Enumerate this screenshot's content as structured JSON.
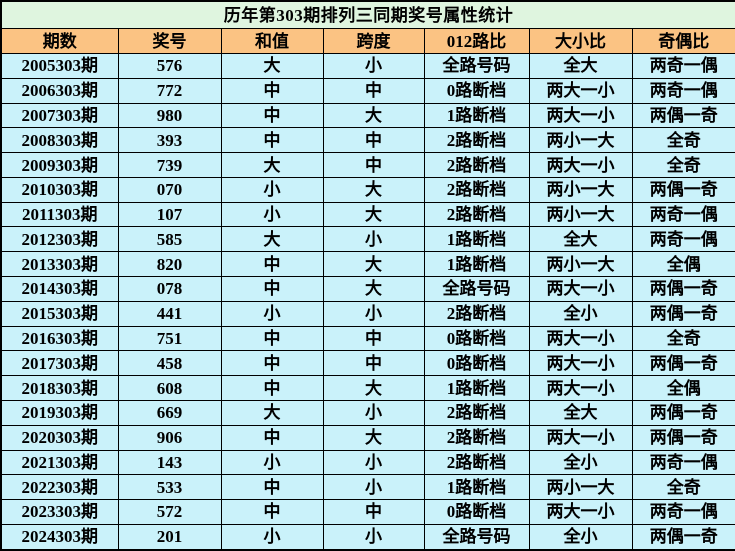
{
  "page_title": "历年第303期排列三同期奖号属性统计",
  "colors": {
    "title_bg": "#dff5df",
    "header_bg": "#fbc383",
    "row_bg": "#caf2fa",
    "border": "#000000",
    "text": "#000000"
  },
  "chart_data": {
    "type": "table",
    "title": "历年第303期排列三同期奖号属性统计",
    "columns": [
      "期数",
      "奖号",
      "和值",
      "跨度",
      "012路比",
      "大小比",
      "奇偶比"
    ],
    "rows": [
      [
        "2005303期",
        "576",
        "大",
        "小",
        "全路号码",
        "全大",
        "两奇一偶"
      ],
      [
        "2006303期",
        "772",
        "中",
        "中",
        "0路断档",
        "两大一小",
        "两奇一偶"
      ],
      [
        "2007303期",
        "980",
        "中",
        "大",
        "1路断档",
        "两大一小",
        "两偶一奇"
      ],
      [
        "2008303期",
        "393",
        "中",
        "中",
        "2路断档",
        "两小一大",
        "全奇"
      ],
      [
        "2009303期",
        "739",
        "大",
        "中",
        "2路断档",
        "两大一小",
        "全奇"
      ],
      [
        "2010303期",
        "070",
        "小",
        "大",
        "2路断档",
        "两小一大",
        "两偶一奇"
      ],
      [
        "2011303期",
        "107",
        "小",
        "大",
        "2路断档",
        "两小一大",
        "两奇一偶"
      ],
      [
        "2012303期",
        "585",
        "大",
        "小",
        "1路断档",
        "全大",
        "两奇一偶"
      ],
      [
        "2013303期",
        "820",
        "中",
        "大",
        "1路断档",
        "两小一大",
        "全偶"
      ],
      [
        "2014303期",
        "078",
        "中",
        "大",
        "全路号码",
        "两大一小",
        "两偶一奇"
      ],
      [
        "2015303期",
        "441",
        "小",
        "小",
        "2路断档",
        "全小",
        "两偶一奇"
      ],
      [
        "2016303期",
        "751",
        "中",
        "中",
        "0路断档",
        "两大一小",
        "全奇"
      ],
      [
        "2017303期",
        "458",
        "中",
        "中",
        "0路断档",
        "两大一小",
        "两偶一奇"
      ],
      [
        "2018303期",
        "608",
        "中",
        "大",
        "1路断档",
        "两大一小",
        "全偶"
      ],
      [
        "2019303期",
        "669",
        "大",
        "小",
        "2路断档",
        "全大",
        "两偶一奇"
      ],
      [
        "2020303期",
        "906",
        "中",
        "大",
        "2路断档",
        "两大一小",
        "两偶一奇"
      ],
      [
        "2021303期",
        "143",
        "小",
        "小",
        "2路断档",
        "全小",
        "两奇一偶"
      ],
      [
        "2022303期",
        "533",
        "中",
        "小",
        "1路断档",
        "两小一大",
        "全奇"
      ],
      [
        "2023303期",
        "572",
        "中",
        "中",
        "0路断档",
        "两大一小",
        "两奇一偶"
      ],
      [
        "2024303期",
        "201",
        "小",
        "小",
        "全路号码",
        "全小",
        "两偶一奇"
      ]
    ]
  }
}
